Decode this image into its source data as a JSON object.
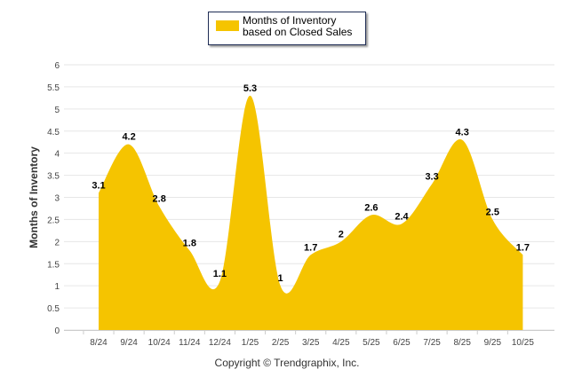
{
  "chart_data": {
    "type": "area",
    "title": "",
    "xlabel": "",
    "ylabel": "Months of Inventory",
    "ylim": [
      0,
      6
    ],
    "yticks": [
      "0",
      "0.5",
      "1",
      "1.5",
      "2",
      "2.5",
      "3",
      "3.5",
      "4",
      "4.5",
      "5",
      "5.5",
      "6"
    ],
    "categories": [
      "8/24",
      "9/24",
      "10/24",
      "11/24",
      "12/24",
      "1/25",
      "2/25",
      "3/25",
      "4/25",
      "5/25",
      "6/25",
      "7/25",
      "8/25",
      "9/25",
      "10/25"
    ],
    "series": [
      {
        "name": "Months of Inventory based on Closed Sales",
        "values": [
          3.1,
          4.2,
          2.8,
          1.8,
          1.1,
          5.3,
          1,
          1.7,
          2,
          2.6,
          2.4,
          3.3,
          4.3,
          2.5,
          1.7
        ],
        "labels": [
          "3.1",
          "4.2",
          "2.8",
          "1.8",
          "1.1",
          "5.3",
          "1",
          "1.7",
          "2",
          "2.6",
          "2.4",
          "3.3",
          "4.3",
          "2.5",
          "1.7"
        ],
        "color": "#f5c400"
      }
    ],
    "legend": {
      "placement": "top-center"
    },
    "grid": true
  },
  "copyright": "Copyright © Trendgraphix, Inc."
}
